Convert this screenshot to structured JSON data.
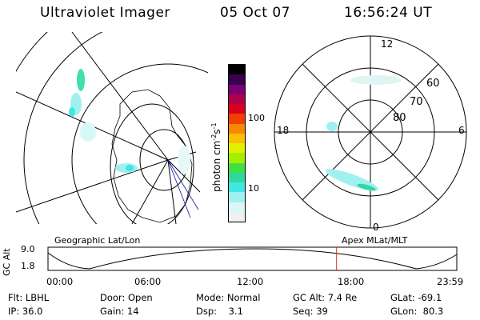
{
  "header": {
    "instrument": "Ultraviolet Imager",
    "date": "05 Oct 07",
    "time": "16:56:24 UT"
  },
  "colorbar": {
    "label": "photon cm",
    "label_sup1": "-2",
    "label_mid": "s",
    "label_sup2": "-1",
    "ticks": [
      "100",
      "10"
    ],
    "colors": [
      "#000000",
      "#3a0050",
      "#7a0074",
      "#b0004a",
      "#d8001e",
      "#f04000",
      "#f88800",
      "#f8c000",
      "#e0f000",
      "#a0f000",
      "#40e040",
      "#30d8a0",
      "#40e8e0",
      "#a0f0f0",
      "#d8f8f8",
      "#f0f0f0"
    ]
  },
  "left_map": {
    "caption": "Geographic Lat/Lon"
  },
  "right_map": {
    "caption": "Apex MLat/MLT",
    "mlt_labels": {
      "top": "12",
      "bottom": "0",
      "left": "18",
      "right": "6"
    },
    "lat_labels": [
      "60",
      "70",
      "80"
    ]
  },
  "altitude_plot": {
    "ylabel": "GC Alt",
    "ymax": "9.0",
    "ymin": "1.8",
    "x_ticks": [
      "00:00",
      "06:00",
      "12:00",
      "18:00",
      "23:59"
    ],
    "marker_color": "#e03020",
    "marker_time_hours": 16.94
  },
  "info": {
    "filter": "Flt: LBHL",
    "ip": "IP: 36.0",
    "door": "Door: Open",
    "gain": "Gain: 14",
    "mode": "Mode: Normal",
    "dsp": "Dsp:    3.1",
    "gc_alt": "GC Alt: 7.4 Re",
    "seq": "Seq: 39",
    "glat": "GLat: -69.1",
    "glon": "GLon:  80.3"
  }
}
